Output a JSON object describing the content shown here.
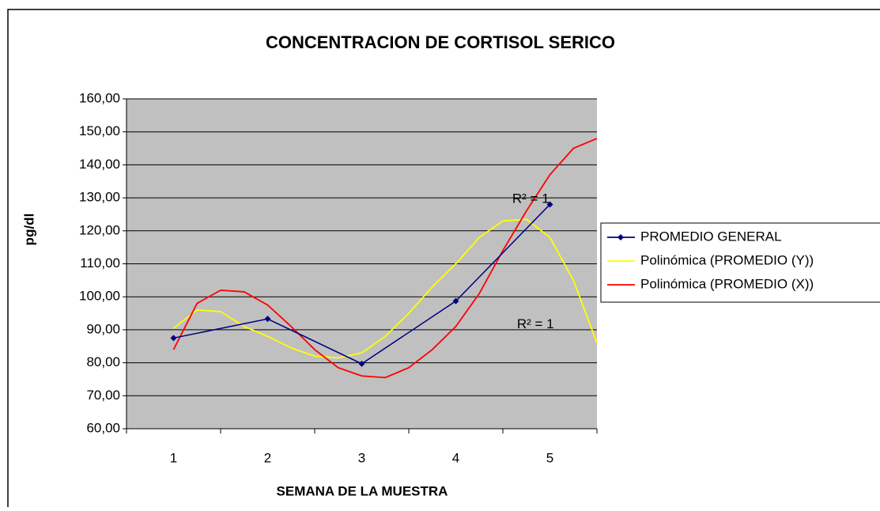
{
  "chart_data": {
    "type": "line",
    "title": "CONCENTRACION DE CORTISOL SERICO",
    "x_label": "SEMANA DE LA MUESTRA",
    "y_label": "pg/dl",
    "categories": [
      "1",
      "2",
      "3",
      "4",
      "5"
    ],
    "series": [
      {
        "name": "PROMEDIO GENERAL",
        "color": "#000080",
        "values": [
          87.5,
          93.3,
          79.7,
          98.7,
          128
        ]
      },
      {
        "name": "Polinómica (PROMEDIO (Y))",
        "color": "#ffff00",
        "x": [
          1,
          1.25,
          1.5,
          1.75,
          2,
          2.25,
          2.5,
          2.75,
          3,
          3.25,
          3.5,
          3.75,
          4,
          4.25,
          4.5,
          4.75,
          5,
          5.25,
          5.5
        ],
        "values": [
          90.5,
          96,
          95.5,
          91,
          88,
          84.5,
          82,
          81.5,
          83,
          88,
          95,
          103,
          110,
          118,
          123,
          123.5,
          118,
          105,
          86
        ]
      },
      {
        "name": "Polinómica (PROMEDIO (X))",
        "color": "#ff0000",
        "x": [
          1,
          1.25,
          1.5,
          1.75,
          2,
          2.25,
          2.5,
          2.75,
          3,
          3.25,
          3.5,
          3.75,
          4,
          4.25,
          4.5,
          4.75,
          5,
          5.25,
          5.5
        ],
        "values": [
          84,
          98,
          102,
          101.5,
          97.5,
          91,
          84,
          78.5,
          76,
          75.5,
          78.5,
          84,
          91,
          101,
          114,
          126,
          137,
          145,
          148
        ]
      }
    ],
    "annotations": [
      {
        "text": "R² = 1",
        "x": 4.6,
        "y": 129.5
      },
      {
        "text": "R² = 1",
        "x": 4.65,
        "y": 91.5
      }
    ],
    "ylim": [
      60,
      160
    ],
    "yticks": [
      {
        "value": 60,
        "label": "60,00"
      },
      {
        "value": 70,
        "label": "70,00"
      },
      {
        "value": 80,
        "label": "80,00"
      },
      {
        "value": 90,
        "label": "90,00"
      },
      {
        "value": 100,
        "label": "100,00"
      },
      {
        "value": 110,
        "label": "110,00"
      },
      {
        "value": 120,
        "label": "120,00"
      },
      {
        "value": 130,
        "label": "130,00"
      },
      {
        "value": 140,
        "label": "140,00"
      },
      {
        "value": 150,
        "label": "150,00"
      },
      {
        "value": 160,
        "label": "160,00"
      }
    ],
    "grid": true,
    "legend": "right"
  }
}
